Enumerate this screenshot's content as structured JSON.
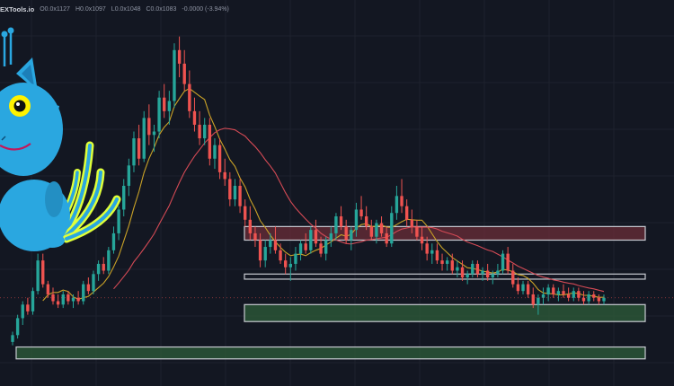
{
  "header": {
    "brand": "EXTools.io",
    "open": "O0.0x1127",
    "high": "H0.0x1097",
    "low": "L0.0x1048",
    "close": "C0.0x1083",
    "change": "-0.0000 (-3.94%)"
  },
  "colors": {
    "background": "#131722",
    "grid": "#1e222d",
    "up": "#26a69a",
    "down": "#ef5350",
    "ma_fast": "#c9a227",
    "ma_slow": "#d44a55",
    "support_zone": "#2e5e3a",
    "resistance_zone": "#6b2e38",
    "zone_border": "#c8cbd2"
  },
  "mascot": {
    "icon": "blue-cat-mascot-icon"
  },
  "chart_data": {
    "type": "candlestick",
    "price_axis": {
      "min": 0,
      "max": 100,
      "labels_shown": false
    },
    "candles": [
      {
        "o": 4,
        "h": 7,
        "l": 3,
        "c": 6
      },
      {
        "o": 6,
        "h": 12,
        "l": 5,
        "c": 11
      },
      {
        "o": 11,
        "h": 16,
        "l": 9,
        "c": 15
      },
      {
        "o": 15,
        "h": 17,
        "l": 12,
        "c": 13
      },
      {
        "o": 13,
        "h": 20,
        "l": 12,
        "c": 19
      },
      {
        "o": 19,
        "h": 30,
        "l": 18,
        "c": 28
      },
      {
        "o": 28,
        "h": 30,
        "l": 20,
        "c": 21
      },
      {
        "o": 21,
        "h": 22,
        "l": 17,
        "c": 18
      },
      {
        "o": 18,
        "h": 20,
        "l": 15,
        "c": 16
      },
      {
        "o": 16,
        "h": 18,
        "l": 14,
        "c": 15
      },
      {
        "o": 15,
        "h": 19,
        "l": 14,
        "c": 18
      },
      {
        "o": 18,
        "h": 19,
        "l": 15,
        "c": 16
      },
      {
        "o": 16,
        "h": 18,
        "l": 14,
        "c": 17
      },
      {
        "o": 17,
        "h": 19,
        "l": 15,
        "c": 16
      },
      {
        "o": 16,
        "h": 22,
        "l": 15,
        "c": 21
      },
      {
        "o": 21,
        "h": 23,
        "l": 18,
        "c": 19
      },
      {
        "o": 19,
        "h": 25,
        "l": 18,
        "c": 24
      },
      {
        "o": 24,
        "h": 28,
        "l": 22,
        "c": 27
      },
      {
        "o": 27,
        "h": 29,
        "l": 24,
        "c": 25
      },
      {
        "o": 25,
        "h": 32,
        "l": 24,
        "c": 31
      },
      {
        "o": 31,
        "h": 38,
        "l": 30,
        "c": 36
      },
      {
        "o": 36,
        "h": 44,
        "l": 34,
        "c": 43
      },
      {
        "o": 43,
        "h": 52,
        "l": 41,
        "c": 50
      },
      {
        "o": 50,
        "h": 58,
        "l": 47,
        "c": 56
      },
      {
        "o": 56,
        "h": 66,
        "l": 54,
        "c": 64
      },
      {
        "o": 64,
        "h": 68,
        "l": 56,
        "c": 58
      },
      {
        "o": 58,
        "h": 72,
        "l": 57,
        "c": 70
      },
      {
        "o": 70,
        "h": 74,
        "l": 62,
        "c": 65
      },
      {
        "o": 65,
        "h": 68,
        "l": 60,
        "c": 66
      },
      {
        "o": 66,
        "h": 78,
        "l": 64,
        "c": 76
      },
      {
        "o": 76,
        "h": 80,
        "l": 70,
        "c": 72
      },
      {
        "o": 72,
        "h": 78,
        "l": 68,
        "c": 75
      },
      {
        "o": 75,
        "h": 92,
        "l": 73,
        "c": 90
      },
      {
        "o": 90,
        "h": 94,
        "l": 82,
        "c": 86
      },
      {
        "o": 86,
        "h": 90,
        "l": 78,
        "c": 80
      },
      {
        "o": 80,
        "h": 84,
        "l": 70,
        "c": 72
      },
      {
        "o": 72,
        "h": 76,
        "l": 66,
        "c": 68
      },
      {
        "o": 68,
        "h": 72,
        "l": 62,
        "c": 64
      },
      {
        "o": 64,
        "h": 70,
        "l": 62,
        "c": 68
      },
      {
        "o": 68,
        "h": 70,
        "l": 56,
        "c": 58
      },
      {
        "o": 58,
        "h": 64,
        "l": 55,
        "c": 62
      },
      {
        "o": 62,
        "h": 64,
        "l": 52,
        "c": 54
      },
      {
        "o": 54,
        "h": 58,
        "l": 50,
        "c": 52
      },
      {
        "o": 52,
        "h": 54,
        "l": 44,
        "c": 46
      },
      {
        "o": 46,
        "h": 52,
        "l": 44,
        "c": 50
      },
      {
        "o": 50,
        "h": 52,
        "l": 42,
        "c": 44
      },
      {
        "o": 44,
        "h": 46,
        "l": 38,
        "c": 40
      },
      {
        "o": 40,
        "h": 44,
        "l": 34,
        "c": 36
      },
      {
        "o": 36,
        "h": 38,
        "l": 32,
        "c": 34
      },
      {
        "o": 34,
        "h": 36,
        "l": 26,
        "c": 28
      },
      {
        "o": 28,
        "h": 34,
        "l": 26,
        "c": 32
      },
      {
        "o": 32,
        "h": 36,
        "l": 30,
        "c": 34
      },
      {
        "o": 34,
        "h": 38,
        "l": 30,
        "c": 31
      },
      {
        "o": 31,
        "h": 33,
        "l": 27,
        "c": 28
      },
      {
        "o": 28,
        "h": 30,
        "l": 24,
        "c": 26
      },
      {
        "o": 26,
        "h": 29,
        "l": 22,
        "c": 27
      },
      {
        "o": 27,
        "h": 32,
        "l": 25,
        "c": 30
      },
      {
        "o": 30,
        "h": 34,
        "l": 28,
        "c": 33
      },
      {
        "o": 33,
        "h": 36,
        "l": 30,
        "c": 31
      },
      {
        "o": 31,
        "h": 38,
        "l": 30,
        "c": 37
      },
      {
        "o": 37,
        "h": 40,
        "l": 32,
        "c": 33
      },
      {
        "o": 33,
        "h": 35,
        "l": 29,
        "c": 30
      },
      {
        "o": 30,
        "h": 35,
        "l": 28,
        "c": 34
      },
      {
        "o": 34,
        "h": 38,
        "l": 32,
        "c": 36
      },
      {
        "o": 36,
        "h": 42,
        "l": 34,
        "c": 41
      },
      {
        "o": 41,
        "h": 44,
        "l": 37,
        "c": 38
      },
      {
        "o": 38,
        "h": 40,
        "l": 33,
        "c": 34
      },
      {
        "o": 34,
        "h": 38,
        "l": 31,
        "c": 37
      },
      {
        "o": 37,
        "h": 45,
        "l": 35,
        "c": 43
      },
      {
        "o": 43,
        "h": 47,
        "l": 40,
        "c": 41
      },
      {
        "o": 41,
        "h": 44,
        "l": 37,
        "c": 38
      },
      {
        "o": 38,
        "h": 40,
        "l": 34,
        "c": 35
      },
      {
        "o": 35,
        "h": 40,
        "l": 33,
        "c": 39
      },
      {
        "o": 39,
        "h": 41,
        "l": 35,
        "c": 36
      },
      {
        "o": 36,
        "h": 38,
        "l": 32,
        "c": 33
      },
      {
        "o": 33,
        "h": 44,
        "l": 32,
        "c": 42
      },
      {
        "o": 42,
        "h": 50,
        "l": 40,
        "c": 47
      },
      {
        "o": 47,
        "h": 52,
        "l": 42,
        "c": 44
      },
      {
        "o": 44,
        "h": 46,
        "l": 38,
        "c": 40
      },
      {
        "o": 40,
        "h": 43,
        "l": 36,
        "c": 38
      },
      {
        "o": 38,
        "h": 40,
        "l": 34,
        "c": 35
      },
      {
        "o": 35,
        "h": 38,
        "l": 31,
        "c": 33
      },
      {
        "o": 33,
        "h": 35,
        "l": 28,
        "c": 30
      },
      {
        "o": 30,
        "h": 33,
        "l": 27,
        "c": 31
      },
      {
        "o": 31,
        "h": 33,
        "l": 27,
        "c": 28
      },
      {
        "o": 28,
        "h": 30,
        "l": 25,
        "c": 27
      },
      {
        "o": 27,
        "h": 29,
        "l": 25,
        "c": 28
      },
      {
        "o": 28,
        "h": 30,
        "l": 24,
        "c": 25
      },
      {
        "o": 25,
        "h": 28,
        "l": 23,
        "c": 26
      },
      {
        "o": 26,
        "h": 28,
        "l": 22,
        "c": 23
      },
      {
        "o": 23,
        "h": 25,
        "l": 21,
        "c": 24
      },
      {
        "o": 24,
        "h": 28,
        "l": 23,
        "c": 27
      },
      {
        "o": 27,
        "h": 28,
        "l": 23,
        "c": 24
      },
      {
        "o": 24,
        "h": 26,
        "l": 22,
        "c": 25
      },
      {
        "o": 25,
        "h": 27,
        "l": 22,
        "c": 23
      },
      {
        "o": 23,
        "h": 25,
        "l": 21,
        "c": 24
      },
      {
        "o": 24,
        "h": 27,
        "l": 23,
        "c": 25
      },
      {
        "o": 25,
        "h": 31,
        "l": 24,
        "c": 30
      },
      {
        "o": 30,
        "h": 32,
        "l": 24,
        "c": 25
      },
      {
        "o": 25,
        "h": 27,
        "l": 20,
        "c": 21
      },
      {
        "o": 21,
        "h": 23,
        "l": 18,
        "c": 19
      },
      {
        "o": 19,
        "h": 22,
        "l": 18,
        "c": 21
      },
      {
        "o": 21,
        "h": 22,
        "l": 17,
        "c": 18
      },
      {
        "o": 18,
        "h": 20,
        "l": 14,
        "c": 15
      },
      {
        "o": 15,
        "h": 18,
        "l": 12,
        "c": 17
      },
      {
        "o": 17,
        "h": 20,
        "l": 15,
        "c": 18
      },
      {
        "o": 18,
        "h": 21,
        "l": 16,
        "c": 20
      },
      {
        "o": 20,
        "h": 21,
        "l": 17,
        "c": 18
      },
      {
        "o": 18,
        "h": 20,
        "l": 16,
        "c": 19
      },
      {
        "o": 19,
        "h": 21,
        "l": 17,
        "c": 18
      },
      {
        "o": 18,
        "h": 20,
        "l": 16,
        "c": 17
      },
      {
        "o": 17,
        "h": 20,
        "l": 16,
        "c": 19
      },
      {
        "o": 19,
        "h": 20,
        "l": 16,
        "c": 17
      },
      {
        "o": 17,
        "h": 19,
        "l": 15,
        "c": 16
      },
      {
        "o": 16,
        "h": 19,
        "l": 15,
        "c": 18
      },
      {
        "o": 18,
        "h": 19,
        "l": 16,
        "c": 17
      },
      {
        "o": 17,
        "h": 18,
        "l": 15,
        "c": 16
      },
      {
        "o": 16,
        "h": 18,
        "l": 15,
        "c": 17
      }
    ],
    "zones": [
      {
        "name": "resistance-zone",
        "low": 34,
        "high": 38,
        "kind": "resistance"
      },
      {
        "name": "resistance-line-zone",
        "low": 22.5,
        "high": 24,
        "kind": "resistance-line"
      },
      {
        "name": "support-zone-upper",
        "low": 10,
        "high": 15,
        "kind": "support"
      },
      {
        "name": "support-zone-lower",
        "low": -1,
        "high": 2.5,
        "kind": "support"
      }
    ],
    "moving_averages": [
      {
        "period": 7,
        "style": "ma_fast"
      },
      {
        "period": 21,
        "style": "ma_slow"
      }
    ],
    "grid": true
  }
}
